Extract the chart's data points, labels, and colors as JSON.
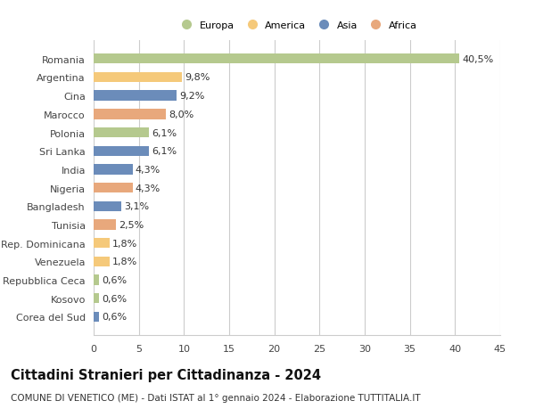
{
  "countries": [
    "Romania",
    "Argentina",
    "Cina",
    "Marocco",
    "Polonia",
    "Sri Lanka",
    "India",
    "Nigeria",
    "Bangladesh",
    "Tunisia",
    "Rep. Dominicana",
    "Venezuela",
    "Repubblica Ceca",
    "Kosovo",
    "Corea del Sud"
  ],
  "values": [
    40.5,
    9.8,
    9.2,
    8.0,
    6.1,
    6.1,
    4.3,
    4.3,
    3.1,
    2.5,
    1.8,
    1.8,
    0.6,
    0.6,
    0.6
  ],
  "labels": [
    "40,5%",
    "9,8%",
    "9,2%",
    "8,0%",
    "6,1%",
    "6,1%",
    "4,3%",
    "4,3%",
    "3,1%",
    "2,5%",
    "1,8%",
    "1,8%",
    "0,6%",
    "0,6%",
    "0,6%"
  ],
  "colors": [
    "#b5c98e",
    "#f5c97a",
    "#6b8cba",
    "#e8a87c",
    "#b5c98e",
    "#6b8cba",
    "#6b8cba",
    "#e8a87c",
    "#6b8cba",
    "#e8a87c",
    "#f5c97a",
    "#f5c97a",
    "#b5c98e",
    "#b5c98e",
    "#6b8cba"
  ],
  "legend_labels": [
    "Europa",
    "America",
    "Asia",
    "Africa"
  ],
  "legend_colors": [
    "#b5c98e",
    "#f5c97a",
    "#6b8cba",
    "#e8a87c"
  ],
  "title": "Cittadini Stranieri per Cittadinanza - 2024",
  "subtitle": "COMUNE DI VENETICO (ME) - Dati ISTAT al 1° gennaio 2024 - Elaborazione TUTTITALIA.IT",
  "xlim": [
    0,
    45
  ],
  "xticks": [
    0,
    5,
    10,
    15,
    20,
    25,
    30,
    35,
    40,
    45
  ],
  "bg_color": "#ffffff",
  "grid_color": "#cccccc",
  "bar_height": 0.55,
  "label_fontsize": 8.0,
  "tick_fontsize": 8.0,
  "title_fontsize": 10.5,
  "subtitle_fontsize": 7.5
}
